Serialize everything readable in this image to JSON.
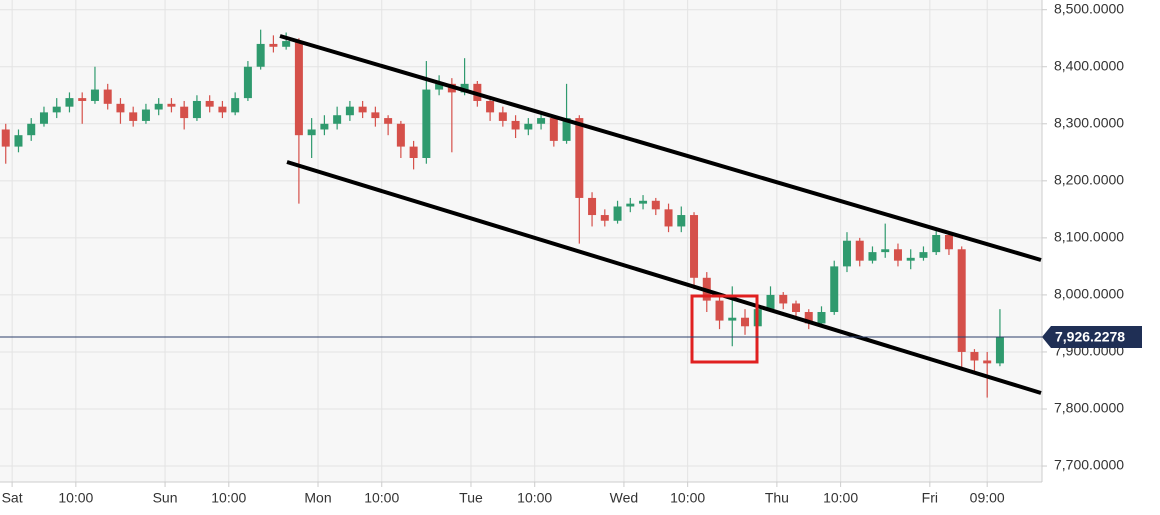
{
  "chart_data": {
    "type": "candlestick",
    "x": [
      -1,
      1,
      3,
      5,
      7,
      9,
      11,
      13,
      15,
      17,
      19,
      21,
      23,
      25,
      27,
      29,
      31,
      33,
      35,
      37,
      39,
      41,
      43,
      45,
      47,
      49,
      51,
      53,
      55,
      57,
      59,
      61,
      63,
      65,
      67,
      69,
      71,
      73,
      75,
      77,
      79,
      81,
      83,
      85,
      87,
      89,
      91,
      93,
      95,
      97,
      99,
      101,
      103,
      105,
      107,
      109,
      111,
      113,
      115,
      117,
      119,
      121,
      123,
      125,
      127,
      129,
      131,
      133,
      135,
      137,
      139,
      141,
      143,
      145,
      147,
      149,
      151,
      153,
      155
    ],
    "open": [
      8290,
      8260,
      8280,
      8300,
      8320,
      8330,
      8345,
      8340,
      8360,
      8335,
      8320,
      8305,
      8325,
      8335,
      8330,
      8310,
      8340,
      8330,
      8320,
      8345,
      8400,
      8440,
      8435,
      8445,
      8280,
      8290,
      8300,
      8315,
      8330,
      8320,
      8310,
      8300,
      8260,
      8240,
      8360,
      8370,
      8355,
      8370,
      8340,
      8320,
      8305,
      8290,
      8300,
      8310,
      8270,
      8310,
      8170,
      8140,
      8130,
      8155,
      8160,
      8165,
      8150,
      8120,
      8140,
      8030,
      7990,
      7955,
      7960,
      7945,
      7975,
      8000,
      7985,
      7970,
      7950,
      7970,
      8050,
      8095,
      8060,
      8075,
      8080,
      8060,
      8065,
      8075,
      8105,
      8080,
      7900,
      7885,
      7880
    ],
    "high": [
      8300,
      8290,
      8310,
      8330,
      8345,
      8355,
      8355,
      8400,
      8370,
      8345,
      8330,
      8335,
      8345,
      8345,
      8340,
      8350,
      8350,
      8340,
      8355,
      8410,
      8465,
      8455,
      8460,
      8450,
      8310,
      8315,
      8330,
      8340,
      8340,
      8330,
      8315,
      8305,
      8270,
      8410,
      8385,
      8380,
      8415,
      8375,
      8345,
      8330,
      8315,
      8310,
      8320,
      8315,
      8370,
      8315,
      8180,
      8150,
      8165,
      8170,
      8175,
      8170,
      8160,
      8155,
      8145,
      8040,
      8000,
      8015,
      7975,
      7990,
      8015,
      8005,
      7990,
      7975,
      7980,
      8060,
      8110,
      8100,
      8085,
      8125,
      8090,
      8080,
      8085,
      8115,
      8110,
      8085,
      7905,
      7900,
      7975
    ],
    "low": [
      8230,
      8250,
      8270,
      8295,
      8310,
      8320,
      8300,
      8335,
      8325,
      8300,
      8295,
      8300,
      8315,
      8320,
      8290,
      8305,
      8320,
      8310,
      8315,
      8340,
      8395,
      8425,
      8430,
      8160,
      8240,
      8280,
      8290,
      8305,
      8310,
      8295,
      8280,
      8240,
      8220,
      8230,
      8350,
      8250,
      8350,
      8330,
      8305,
      8295,
      8275,
      8280,
      8290,
      8260,
      8265,
      8090,
      8120,
      8120,
      8125,
      8145,
      8150,
      8140,
      8110,
      8110,
      8010,
      7970,
      7940,
      7910,
      7930,
      7940,
      7970,
      7975,
      7960,
      7940,
      7945,
      7965,
      8040,
      8050,
      8055,
      8065,
      8050,
      8045,
      8060,
      8070,
      8070,
      7870,
      7865,
      7820,
      7875
    ],
    "close": [
      8260,
      8280,
      8300,
      8320,
      8330,
      8345,
      8340,
      8360,
      8335,
      8320,
      8305,
      8325,
      8335,
      8330,
      8310,
      8340,
      8330,
      8320,
      8345,
      8400,
      8440,
      8435,
      8445,
      8280,
      8290,
      8300,
      8315,
      8330,
      8320,
      8310,
      8300,
      8260,
      8240,
      8360,
      8370,
      8355,
      8370,
      8340,
      8320,
      8305,
      8290,
      8300,
      8310,
      8270,
      8310,
      8170,
      8140,
      8130,
      8155,
      8160,
      8165,
      8150,
      8120,
      8140,
      8030,
      7990,
      7955,
      7960,
      7945,
      7975,
      8000,
      7985,
      7970,
      7950,
      7970,
      8050,
      8095,
      8060,
      8075,
      8080,
      8060,
      8065,
      8075,
      8105,
      8080,
      7900,
      7885,
      7880,
      7926.2278
    ],
    "up_color": "#2f9a6e",
    "down_color": "#d5504a",
    "last_price": {
      "value": 7926.2278,
      "label": "7,926.2278"
    },
    "xlim": [
      -1.9,
      161.6
    ],
    "xticks": [
      {
        "value": 0,
        "label": "Sat"
      },
      {
        "value": 10,
        "label": "10:00"
      },
      {
        "value": 24,
        "label": "Sun"
      },
      {
        "value": 34,
        "label": "10:00"
      },
      {
        "value": 48,
        "label": "Mon"
      },
      {
        "value": 58,
        "label": "10:00"
      },
      {
        "value": 72,
        "label": "Tue"
      },
      {
        "value": 82,
        "label": "10:00"
      },
      {
        "value": 96,
        "label": "Wed"
      },
      {
        "value": 106,
        "label": "10:00"
      },
      {
        "value": 120,
        "label": "Thu"
      },
      {
        "value": 130,
        "label": "10:00"
      },
      {
        "value": 144,
        "label": "Fri"
      },
      {
        "value": 153,
        "label": "09:00"
      }
    ],
    "ylim": [
      7672,
      8517
    ],
    "yticks": [
      {
        "value": 7700,
        "label": "7,700.0000"
      },
      {
        "value": 7800,
        "label": "7,800.0000"
      },
      {
        "value": 7900,
        "label": "7,900.0000"
      },
      {
        "value": 8000,
        "label": "8,000.0000"
      },
      {
        "value": 8100,
        "label": "8,100.0000"
      },
      {
        "value": 8200,
        "label": "8,200.0000"
      },
      {
        "value": 8300,
        "label": "8,300.0000"
      },
      {
        "value": 8400,
        "label": "8,400.0000"
      },
      {
        "value": 8500,
        "label": "8,500.0000"
      }
    ],
    "grid": true
  }
}
